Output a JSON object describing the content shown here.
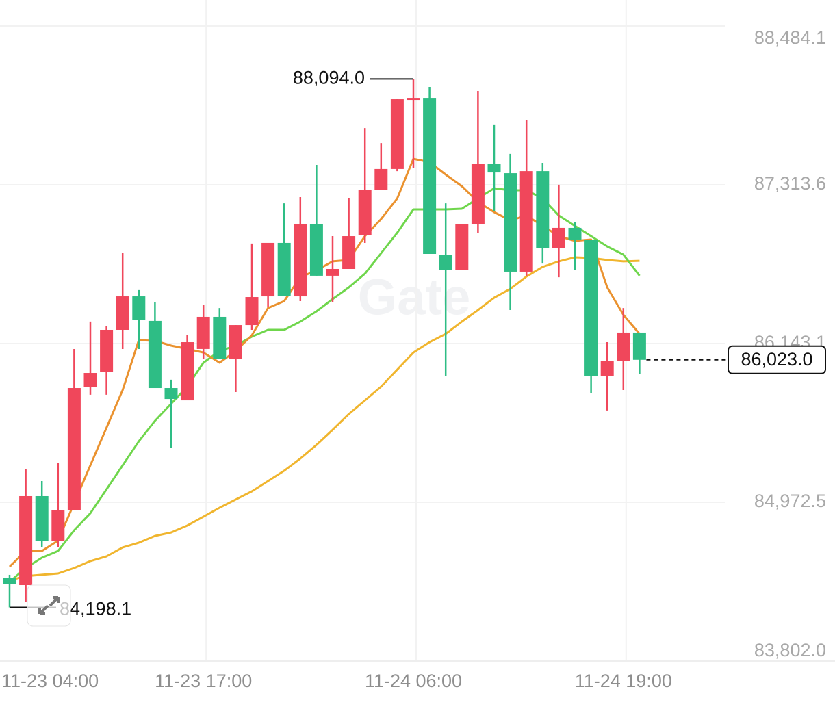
{
  "chart_data": {
    "type": "candlestick",
    "categories": [
      "11-23 04:00",
      null,
      null,
      null,
      null,
      null,
      null,
      null,
      null,
      null,
      null,
      null,
      null,
      "11-23 17:00",
      null,
      null,
      null,
      null,
      null,
      null,
      null,
      null,
      null,
      null,
      null,
      null,
      "11-24 06:00",
      null,
      null,
      null,
      null,
      null,
      null,
      null,
      null,
      null,
      null,
      null,
      null,
      "11-24 19:00",
      null
    ],
    "open": [
      null,
      84413,
      84362,
      85018,
      84690,
      84917,
      85825,
      85936,
      86244,
      86491,
      86310,
      85815,
      85724,
      86103,
      86340,
      86027,
      86279,
      86491,
      86885,
      86491,
      87026,
      86643,
      86693,
      86945,
      87278,
      87430,
      87939,
      87954,
      86794,
      86683,
      87026,
      87470,
      87399,
      86673,
      87414,
      86849,
      86996,
      86910,
      85906,
      86012,
      86224
    ],
    "high": [
      null,
      84438,
      85220,
      85129,
      85265,
      86103,
      86305,
      86274,
      86814,
      86537,
      86446,
      85876,
      86204,
      86426,
      86405,
      86279,
      86880,
      86885,
      87177,
      87223,
      87460,
      86935,
      87213,
      87732,
      87621,
      87944,
      88094.0,
      88035,
      87177,
      87026,
      88005,
      87758,
      87541,
      87788,
      87475,
      87314,
      87036,
      86910,
      86153,
      86405,
      86224
    ],
    "low": [
      null,
      84198.1,
      84236,
      84640,
      84640,
      84917,
      85765,
      85765,
      86103,
      86103,
      85815,
      85371,
      85724,
      86027,
      86027,
      85785,
      86244,
      86411,
      86496,
      86456,
      86643,
      86451,
      86693,
      86885,
      87278,
      87414,
      87440,
      86804,
      85901,
      86683,
      86960,
      87122,
      86390,
      86643,
      86733,
      86632,
      86683,
      85775,
      85649,
      85800,
      85916
    ],
    "close": [
      null,
      84372,
      85018,
      84690,
      84917,
      85815,
      85926,
      86244,
      86491,
      86315,
      85815,
      85734,
      86153,
      86340,
      86027,
      86279,
      86486,
      86885,
      86496,
      87026,
      86643,
      86693,
      86935,
      87278,
      87430,
      87944,
      87954,
      86804,
      86683,
      87026,
      87465,
      87404,
      86673,
      87414,
      86849,
      86996,
      86910,
      85906,
      86012,
      86224,
      86023.0
    ],
    "up_color": "#f0475b",
    "down_color": "#2ebd85",
    "moving_averages": [
      {
        "color": "#f0b52e",
        "values": [
          null,
          84397,
          84428,
          84438,
          84448,
          84488,
          84539,
          84574,
          84640,
          84675,
          84725,
          84750,
          84801,
          84866,
          84932,
          84993,
          85053,
          85129,
          85205,
          85295,
          85396,
          85507,
          85623,
          85724,
          85825,
          85951,
          86077,
          86153,
          86214,
          86305,
          86390,
          86481,
          86546,
          86637,
          86708,
          86749,
          86779,
          86774,
          86759,
          86749,
          86753
        ]
      },
      {
        "color": "#6fd64c",
        "values": [
          null,
          84387,
          84488,
          84564,
          84614,
          84766,
          84892,
          85068,
          85245,
          85422,
          85573,
          85699,
          85825,
          86002,
          86088,
          86128,
          86194,
          86244,
          86244,
          86305,
          86380,
          86471,
          86557,
          86658,
          86809,
          86960,
          87132,
          87132,
          87132,
          87137,
          87213,
          87288,
          87273,
          87273,
          87213,
          87087,
          87011,
          86935,
          86859,
          86799,
          86643
        ]
      },
      {
        "color": "#ea922f",
        "values": [
          null,
          84498,
          84614,
          84614,
          84690,
          84967,
          85245,
          85522,
          85800,
          86168,
          86163,
          86128,
          86103,
          86077,
          86002,
          86088,
          86204,
          86405,
          86456,
          86632,
          86683,
          86749,
          86759,
          86935,
          87061,
          87213,
          87505,
          87480,
          87389,
          87303,
          87187,
          87112,
          87051,
          87087,
          87011,
          86935,
          86900,
          86910,
          86557,
          86355,
          86214
        ]
      }
    ],
    "ylim": [
      83802.0,
      88484.1
    ],
    "yticks": [
      {
        "value": 83802.0,
        "label": "83,802.0"
      },
      {
        "value": 84972.5,
        "label": "84,972.5"
      },
      {
        "value": 86143.1,
        "label": "86,143.1"
      },
      {
        "value": 87313.6,
        "label": "87,313.6"
      },
      {
        "value": 88484.1,
        "label": "88,484.1"
      }
    ],
    "grid": true,
    "high_marker": {
      "value": 88094.0,
      "label": "88,094.0"
    },
    "low_marker": {
      "value": 84198.1,
      "label": "84,198.1"
    },
    "last_price": {
      "value": 86023.0,
      "label": "86,023.0"
    },
    "watermark": "Gate"
  }
}
